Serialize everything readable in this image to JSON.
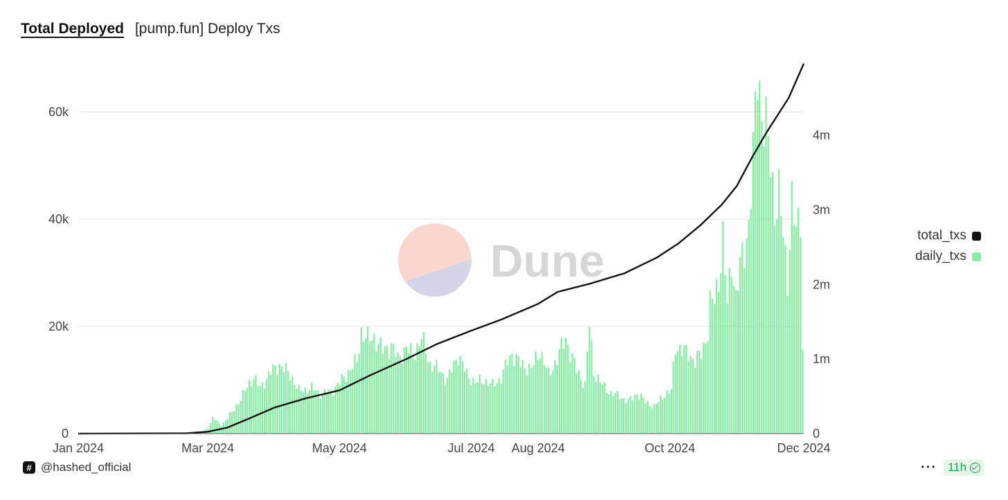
{
  "header": {
    "tab_label": "Total Deployed",
    "title": "[pump.fun] Deploy Txs"
  },
  "watermark": "Dune",
  "footer": {
    "author": "@hashed_official",
    "freshness": "11h"
  },
  "colors": {
    "daily": "#8aeba6",
    "total": "#111111",
    "grid": "#e3e3e3"
  },
  "chart_data": {
    "type": "bar",
    "x_ticks": [
      "Jan 2024",
      "Mar 2024",
      "May 2024",
      "Jul 2024",
      "Aug 2024",
      "Oct 2024",
      "Dec 2024"
    ],
    "x_range": [
      "2024-01-01",
      "2024-12-02"
    ],
    "y_left": {
      "ticks": [
        "0",
        "20k",
        "40k",
        "60k"
      ],
      "ylim": [
        0,
        69000
      ]
    },
    "y_right": {
      "ticks": [
        "0",
        "1m",
        "2m",
        "3m",
        "4m"
      ],
      "ylim": [
        0,
        4960000
      ]
    },
    "grid": true,
    "legend_position": "right",
    "series": [
      {
        "name": "total_txs",
        "type": "line",
        "axis": "right",
        "points": [
          [
            "2024-01-01",
            0
          ],
          [
            "2024-02-20",
            5000
          ],
          [
            "2024-03-01",
            25000
          ],
          [
            "2024-03-10",
            80000
          ],
          [
            "2024-03-20",
            200000
          ],
          [
            "2024-04-01",
            350000
          ],
          [
            "2024-04-15",
            470000
          ],
          [
            "2024-05-01",
            580000
          ],
          [
            "2024-05-15",
            780000
          ],
          [
            "2024-06-01",
            1000000
          ],
          [
            "2024-06-15",
            1200000
          ],
          [
            "2024-07-01",
            1380000
          ],
          [
            "2024-07-15",
            1530000
          ],
          [
            "2024-08-01",
            1740000
          ],
          [
            "2024-08-10",
            1900000
          ],
          [
            "2024-08-25",
            2010000
          ],
          [
            "2024-09-10",
            2150000
          ],
          [
            "2024-09-25",
            2360000
          ],
          [
            "2024-10-05",
            2550000
          ],
          [
            "2024-10-15",
            2790000
          ],
          [
            "2024-10-25",
            3070000
          ],
          [
            "2024-11-01",
            3320000
          ],
          [
            "2024-11-08",
            3700000
          ],
          [
            "2024-11-15",
            4050000
          ],
          [
            "2024-11-25",
            4500000
          ],
          [
            "2024-12-02",
            4960000
          ]
        ]
      },
      {
        "name": "daily_txs",
        "type": "bar",
        "axis": "left",
        "points": [
          [
            "2024-01-01",
            0
          ],
          [
            "2024-02-15",
            0
          ],
          [
            "2024-02-28",
            500
          ],
          [
            "2024-03-01",
            1000
          ],
          [
            "2024-03-03",
            3000
          ],
          [
            "2024-03-07",
            1500
          ],
          [
            "2024-03-12",
            4000
          ],
          [
            "2024-03-16",
            6500
          ],
          [
            "2024-03-20",
            9500
          ],
          [
            "2024-03-22",
            10500
          ],
          [
            "2024-03-25",
            8500
          ],
          [
            "2024-03-30",
            11500
          ],
          [
            "2024-04-03",
            12800
          ],
          [
            "2024-04-08",
            11000
          ],
          [
            "2024-04-12",
            8000
          ],
          [
            "2024-04-18",
            8500
          ],
          [
            "2024-04-22",
            7500
          ],
          [
            "2024-04-27",
            7800
          ],
          [
            "2024-05-01",
            9500
          ],
          [
            "2024-05-06",
            12000
          ],
          [
            "2024-05-09",
            13500
          ],
          [
            "2024-05-11",
            19000
          ],
          [
            "2024-05-14",
            17500
          ],
          [
            "2024-05-17",
            18000
          ],
          [
            "2024-05-21",
            15500
          ],
          [
            "2024-05-25",
            16500
          ],
          [
            "2024-05-28",
            14000
          ],
          [
            "2024-06-01",
            16000
          ],
          [
            "2024-06-04",
            14500
          ],
          [
            "2024-06-08",
            17800
          ],
          [
            "2024-06-12",
            13000
          ],
          [
            "2024-06-16",
            12000
          ],
          [
            "2024-06-20",
            10000
          ],
          [
            "2024-06-25",
            14800
          ],
          [
            "2024-06-29",
            11000
          ],
          [
            "2024-07-03",
            9500
          ],
          [
            "2024-07-07",
            10000
          ],
          [
            "2024-07-11",
            9000
          ],
          [
            "2024-07-15",
            10500
          ],
          [
            "2024-07-18",
            13500
          ],
          [
            "2024-07-20",
            15000
          ],
          [
            "2024-07-24",
            13000
          ],
          [
            "2024-07-29",
            12000
          ],
          [
            "2024-08-02",
            15500
          ],
          [
            "2024-08-06",
            11000
          ],
          [
            "2024-08-10",
            14000
          ],
          [
            "2024-08-14",
            18000
          ],
          [
            "2024-08-16",
            15000
          ],
          [
            "2024-08-19",
            12000
          ],
          [
            "2024-08-23",
            9000
          ],
          [
            "2024-08-25",
            20500
          ],
          [
            "2024-08-27",
            11500
          ],
          [
            "2024-08-31",
            9000
          ],
          [
            "2024-09-04",
            7500
          ],
          [
            "2024-09-08",
            7000
          ],
          [
            "2024-09-12",
            6000
          ],
          [
            "2024-09-16",
            7500
          ],
          [
            "2024-09-20",
            6000
          ],
          [
            "2024-09-24",
            5000
          ],
          [
            "2024-09-28",
            7000
          ],
          [
            "2024-10-02",
            8000
          ],
          [
            "2024-10-04",
            16500
          ],
          [
            "2024-10-07",
            15500
          ],
          [
            "2024-10-10",
            15000
          ],
          [
            "2024-10-13",
            13500
          ],
          [
            "2024-10-16",
            15000
          ],
          [
            "2024-10-19",
            19000
          ],
          [
            "2024-10-20",
            24000
          ],
          [
            "2024-10-22",
            25000
          ],
          [
            "2024-10-24",
            29000
          ],
          [
            "2024-10-26",
            36000
          ],
          [
            "2024-10-28",
            24000
          ],
          [
            "2024-10-30",
            33000
          ],
          [
            "2024-11-01",
            25000
          ],
          [
            "2024-11-03",
            31000
          ],
          [
            "2024-11-05",
            35000
          ],
          [
            "2024-11-07",
            39000
          ],
          [
            "2024-11-09",
            51000
          ],
          [
            "2024-11-11",
            69000
          ],
          [
            "2024-11-13",
            60000
          ],
          [
            "2024-11-15",
            56000
          ],
          [
            "2024-11-17",
            51000
          ],
          [
            "2024-11-19",
            42000
          ],
          [
            "2024-11-21",
            44000
          ],
          [
            "2024-11-23",
            37000
          ],
          [
            "2024-11-25",
            29000
          ],
          [
            "2024-11-27",
            43000
          ],
          [
            "2024-11-29",
            37000
          ],
          [
            "2024-12-01",
            42000
          ],
          [
            "2024-12-02",
            16000
          ]
        ]
      }
    ]
  }
}
